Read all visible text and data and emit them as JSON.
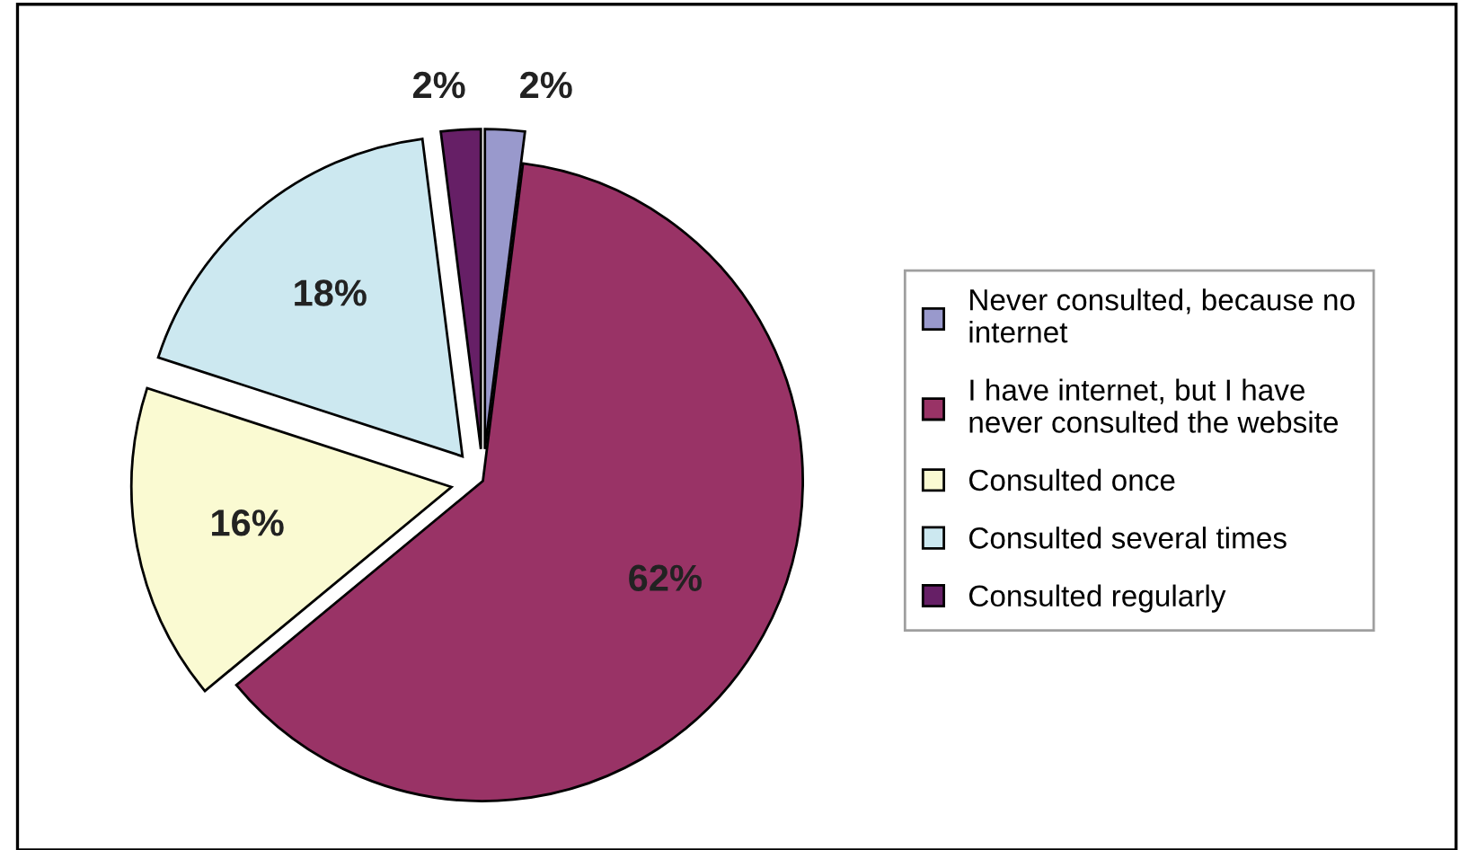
{
  "chart_data": {
    "type": "pie",
    "categories": [
      "Never consulted, because no internet",
      "I have internet, but I have never consulted the website",
      "Consulted once",
      "Consulted several times",
      "Consulted regularly"
    ],
    "values": [
      2,
      62,
      16,
      18,
      2
    ],
    "colors": [
      "#9999cc",
      "#993366",
      "#fafad2",
      "#cce8f0",
      "#661f66"
    ],
    "value_labels": [
      "2%",
      "62%",
      "16%",
      "18%",
      "2%"
    ],
    "legend": "right"
  }
}
